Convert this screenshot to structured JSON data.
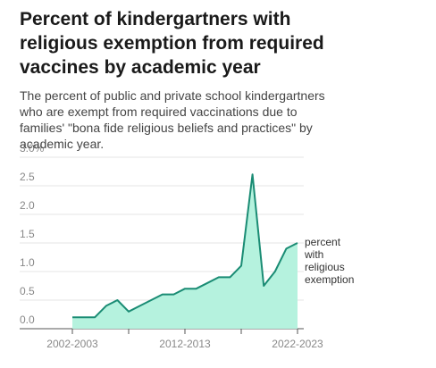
{
  "chart_data": {
    "type": "area",
    "title": "Percent of kindergartners with religious exemption from required vaccines by academic year",
    "subtitle": "The percent of public and private school kindergartners who are exempt from required vaccinations due to families' \"bona fide religious beliefs and practices\" by academic year.",
    "annotation": "percent with religious exemption",
    "categories": [
      "2002-2003",
      null,
      null,
      null,
      null,
      null,
      null,
      null,
      null,
      null,
      "2012-2013",
      null,
      null,
      null,
      null,
      null,
      null,
      null,
      null,
      null,
      "2022-2023"
    ],
    "values": [
      0.2,
      0.2,
      0.2,
      0.4,
      0.5,
      0.3,
      0.4,
      0.5,
      0.6,
      0.6,
      0.7,
      0.7,
      0.8,
      0.9,
      0.9,
      1.1,
      2.7,
      0.75,
      1.0,
      1.4,
      1.5
    ],
    "color": "#1a8c74",
    "fill": "#b5f2de",
    "ylim": [
      0,
      3.0
    ],
    "yticks": [
      {
        "value": 0,
        "label": "0.0"
      },
      0.5,
      {
        "value": 1.0,
        "label": "1.0"
      },
      1.5,
      {
        "value": 2.0,
        "label": "2.0"
      },
      2.5,
      {
        "value": 3.0,
        "label": "3.0%"
      }
    ],
    "grid": true
  }
}
